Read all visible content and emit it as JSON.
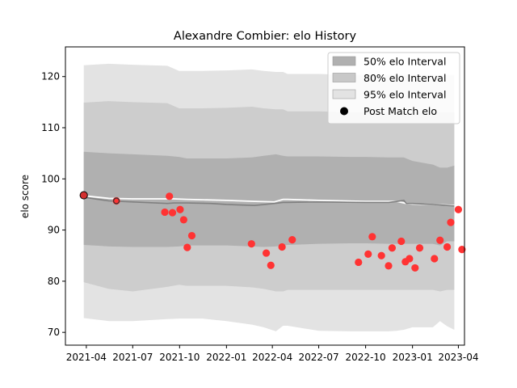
{
  "chart_data": {
    "type": "area",
    "title": "Alexandre Combier: elo History",
    "xlabel": "",
    "ylabel": "elo score",
    "xlim": [
      "2021-02-19",
      "2023-04-13"
    ],
    "ylim": [
      67.5,
      125.8
    ],
    "yticks": [
      70,
      80,
      90,
      100,
      110,
      120
    ],
    "xticks": [
      {
        "date": "2021-04-01",
        "label": "2021-04"
      },
      {
        "date": "2021-07-01",
        "label": "2021-07"
      },
      {
        "date": "2021-10-01",
        "label": "2021-10"
      },
      {
        "date": "2022-01-01",
        "label": "2022-01"
      },
      {
        "date": "2022-04-01",
        "label": "2022-04"
      },
      {
        "date": "2022-07-01",
        "label": "2022-07"
      },
      {
        "date": "2022-10-01",
        "label": "2022-10"
      },
      {
        "date": "2023-01-01",
        "label": "2023-01"
      },
      {
        "date": "2023-04-01",
        "label": "2023-04"
      }
    ],
    "grid": false,
    "legend_position": "top-right",
    "legend": [
      {
        "label": "50% elo Interval",
        "kind": "patch",
        "color": "#b0b0b0"
      },
      {
        "label": "80% elo Interval",
        "kind": "patch",
        "color": "#c8c8c8"
      },
      {
        "label": "95% elo Interval",
        "kind": "patch",
        "color": "#e3e3e3"
      },
      {
        "label": "Post Match elo",
        "kind": "dot",
        "color": "#000000"
      }
    ],
    "colors": {
      "band50": "#b0b0b0",
      "band80": "#cdcdcd",
      "band95": "#e3e3e3",
      "mean_line": "#808080",
      "median_line": "#ffffff",
      "point": "#ff3333",
      "first_point": "#d32f2f"
    },
    "bands": {
      "x": [
        "2021-03-27",
        "2021-05-15",
        "2021-07-01",
        "2021-09-07",
        "2021-09-30",
        "2021-10-15",
        "2021-11-15",
        "2022-01-01",
        "2022-02-20",
        "2022-03-15",
        "2022-04-08",
        "2022-04-22",
        "2022-05-01",
        "2022-07-01",
        "2022-09-01",
        "2022-10-01",
        "2022-11-15",
        "2022-12-01",
        "2022-12-15",
        "2023-01-01",
        "2023-02-10",
        "2023-02-24",
        "2023-03-10",
        "2023-03-24"
      ],
      "p50": {
        "low": [
          87.1,
          86.8,
          86.7,
          86.7,
          86.8,
          87.0,
          87.0,
          87.0,
          86.8,
          86.7,
          86.8,
          87.0,
          87.1,
          87.3,
          87.4,
          87.4,
          87.3,
          87.3,
          87.3,
          87.3,
          87.3,
          87.0,
          87.8,
          87.8
        ],
        "high": [
          105.3,
          105.0,
          104.8,
          104.5,
          104.3,
          104.0,
          104.0,
          104.0,
          104.2,
          104.5,
          104.8,
          104.5,
          104.4,
          104.4,
          104.3,
          104.3,
          104.2,
          104.2,
          104.2,
          103.5,
          102.8,
          102.2,
          102.2,
          102.6
        ]
      },
      "p80": {
        "low": [
          79.8,
          78.5,
          78.0,
          78.9,
          79.3,
          79.1,
          79.1,
          79.1,
          78.8,
          78.5,
          78.0,
          78.0,
          78.3,
          78.3,
          78.3,
          78.3,
          78.3,
          78.3,
          78.3,
          78.3,
          78.3,
          78.0,
          78.3,
          78.3
        ],
        "high": [
          114.9,
          115.2,
          115.0,
          114.8,
          113.8,
          113.8,
          113.8,
          113.9,
          114.1,
          113.8,
          113.6,
          113.6,
          113.2,
          113.2,
          113.0,
          113.0,
          113.0,
          113.0,
          113.0,
          113.0,
          113.0,
          113.0,
          113.0,
          113.0
        ]
      },
      "p95": {
        "low": [
          72.8,
          72.2,
          72.2,
          72.6,
          72.7,
          72.7,
          72.7,
          72.2,
          71.5,
          71.0,
          70.2,
          71.3,
          71.3,
          70.3,
          70.2,
          70.2,
          70.2,
          70.3,
          70.5,
          71.0,
          71.0,
          72.2,
          71.2,
          70.5
        ]
      }
    },
    "mean_line": {
      "x": [
        "2021-03-27",
        "2021-05-15",
        "2021-07-01",
        "2021-09-07",
        "2021-09-20",
        "2021-10-15",
        "2021-12-01",
        "2022-01-01",
        "2022-02-25",
        "2022-04-05",
        "2022-04-22",
        "2022-05-01",
        "2022-07-01",
        "2022-10-01",
        "2022-11-15",
        "2022-12-01",
        "2022-12-15",
        "2022-12-20",
        "2023-01-01",
        "2023-02-10",
        "2023-03-24"
      ],
      "y": [
        96.4,
        95.7,
        95.5,
        95.2,
        95.3,
        95.3,
        95.2,
        95.0,
        94.8,
        95.2,
        95.4,
        95.4,
        95.5,
        95.4,
        95.4,
        95.6,
        95.8,
        95.2,
        95.2,
        95.0,
        94.7
      ]
    },
    "median_line": {
      "x": [
        "2021-03-27",
        "2021-05-15",
        "2021-07-01",
        "2021-09-07",
        "2021-09-20",
        "2021-10-15",
        "2022-01-01",
        "2022-02-25",
        "2022-04-05",
        "2022-04-22",
        "2022-05-01",
        "2022-07-01",
        "2022-10-01",
        "2022-12-01",
        "2022-12-20",
        "2023-01-01",
        "2023-02-10",
        "2023-03-24"
      ],
      "y": [
        96.7,
        96.2,
        96.1,
        96.1,
        96.1,
        96.0,
        95.8,
        95.6,
        95.5,
        96.0,
        96.0,
        95.8,
        95.6,
        95.6,
        95.2,
        95.1,
        95.0,
        94.8
      ]
    },
    "points": {
      "x": [
        "2021-03-27",
        "2021-05-30",
        "2021-09-02",
        "2021-09-11",
        "2021-09-17",
        "2021-10-02",
        "2021-10-09",
        "2021-10-16",
        "2021-10-25",
        "2022-02-19",
        "2022-03-20",
        "2022-03-29",
        "2022-04-20",
        "2022-05-10",
        "2022-09-17",
        "2022-10-06",
        "2022-10-14",
        "2022-11-01",
        "2022-11-15",
        "2022-11-22",
        "2022-12-10",
        "2022-12-18",
        "2022-12-26",
        "2023-01-06",
        "2023-01-15",
        "2023-02-13",
        "2023-02-24",
        "2023-03-10",
        "2023-03-17",
        "2023-04-01",
        "2023-04-08"
      ],
      "y": [
        96.8,
        95.7,
        93.5,
        96.6,
        93.4,
        94.0,
        92.0,
        86.6,
        88.9,
        87.3,
        85.5,
        83.1,
        86.7,
        88.1,
        83.7,
        85.3,
        88.7,
        85.0,
        83.0,
        86.5,
        87.8,
        83.8,
        84.4,
        82.6,
        86.5,
        84.4,
        88.0,
        86.7,
        91.5,
        94.0,
        86.2
      ]
    }
  }
}
